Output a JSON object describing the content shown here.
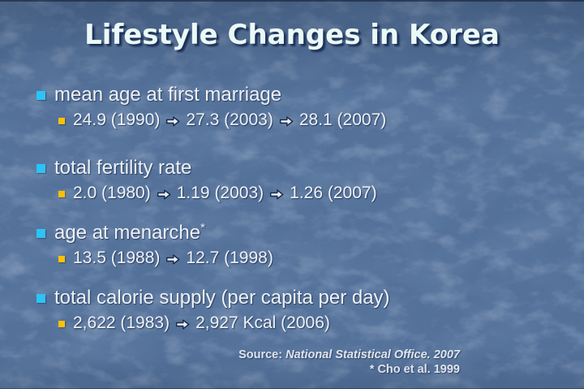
{
  "title": "Lifestyle Changes in Korea",
  "bullets": [
    {
      "label": "mean age at first marriage",
      "values": [
        "24.9 (1990)",
        "27.3 (2003)",
        "28.1 (2007)"
      ]
    },
    {
      "label": "total fertility rate",
      "values": [
        "2.0 (1980)",
        "1.19 (2003)",
        "1.26 (2007)"
      ]
    },
    {
      "label": "age at menarche",
      "sup": "*",
      "values": [
        "13.5 (1988)",
        "12.7 (1998)"
      ]
    },
    {
      "label": "total calorie supply (per capita per day)",
      "values": [
        "2,622 (1983)",
        "2,927 Kcal (2006)"
      ]
    }
  ],
  "source": {
    "prefix": "Source: ",
    "citation": "National Statistical Office. 2007",
    "footnote": "* Cho et al. 1999"
  },
  "icons": {
    "main_bullet": "square",
    "sub_bullet": "square",
    "value_transition": "right-arrow"
  },
  "colors": {
    "background": "#54719a",
    "title_text": "#ebf9f6",
    "title_shadow": "#1b2f55",
    "body_text": "#eef2f7",
    "accent_cyan": "#2cc3f5",
    "accent_gold": "#ffc000",
    "arrow_fill": "#e9eef4",
    "arrow_stroke": "#17294a",
    "source_text": "#dee5ee"
  }
}
